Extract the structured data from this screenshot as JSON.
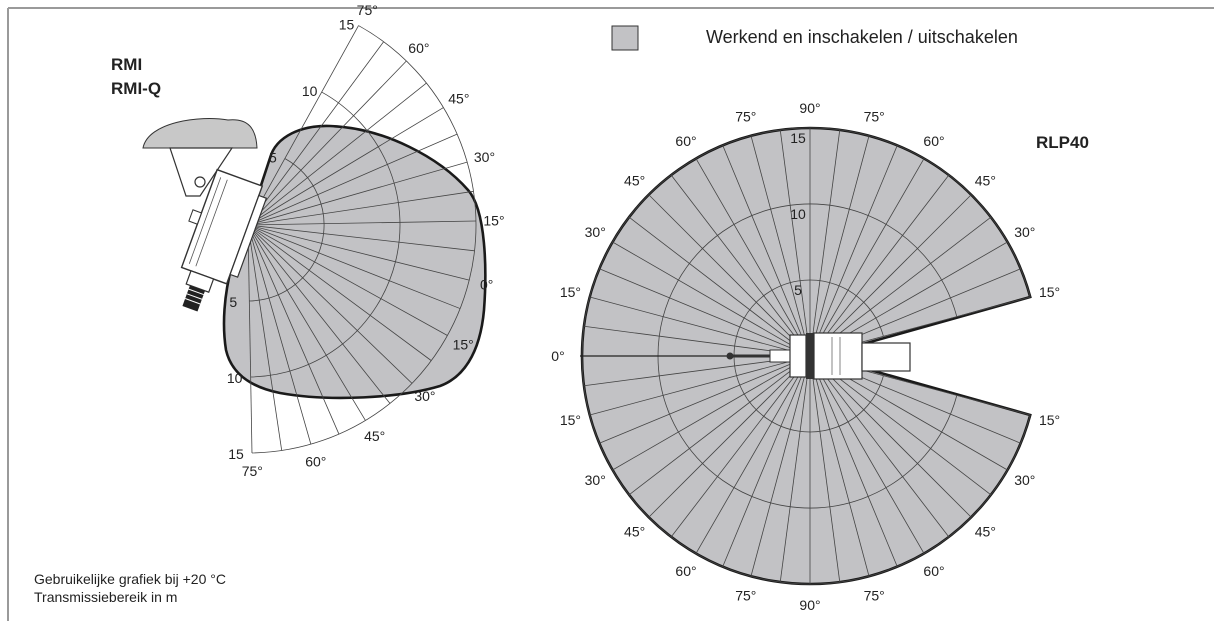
{
  "legend": {
    "label": "Werkend en inschakelen / uitschakelen",
    "swatch_color": "#c2c2c5"
  },
  "left_diagram": {
    "title_line1": "RMI",
    "title_line2": "RMI-Q",
    "range_labels_upper": [
      "5",
      "10",
      "15"
    ],
    "range_labels_lower": [
      "5",
      "10",
      "15"
    ],
    "angle_labels_upper": [
      "75°",
      "60°",
      "45°",
      "30°",
      "15°"
    ],
    "zero_label": "0°",
    "angle_labels_lower": [
      "15°",
      "30°",
      "45°",
      "60°",
      "75°"
    ]
  },
  "right_diagram": {
    "title": "RLP40",
    "range_labels": [
      "5",
      "10",
      "15"
    ],
    "top_label": "90°",
    "bottom_label": "90°",
    "zero_label": "0°",
    "upper_left_labels": [
      "15°",
      "30°",
      "45°",
      "60°",
      "75°"
    ],
    "upper_right_labels": [
      "75°",
      "60°",
      "45°",
      "30°",
      "15°"
    ],
    "lower_left_labels": [
      "15°",
      "30°",
      "45°",
      "60°",
      "75°"
    ],
    "lower_right_labels": [
      "15°",
      "30°",
      "45°",
      "60°",
      "75°"
    ]
  },
  "footnote": {
    "line1": "Gebruikelijke grafiek bij +20 °C",
    "line2": "Transmissiebereik in m"
  },
  "colors": {
    "fill": "#c2c2c5",
    "outline": "#1a1a1a",
    "frame": "#999999"
  }
}
